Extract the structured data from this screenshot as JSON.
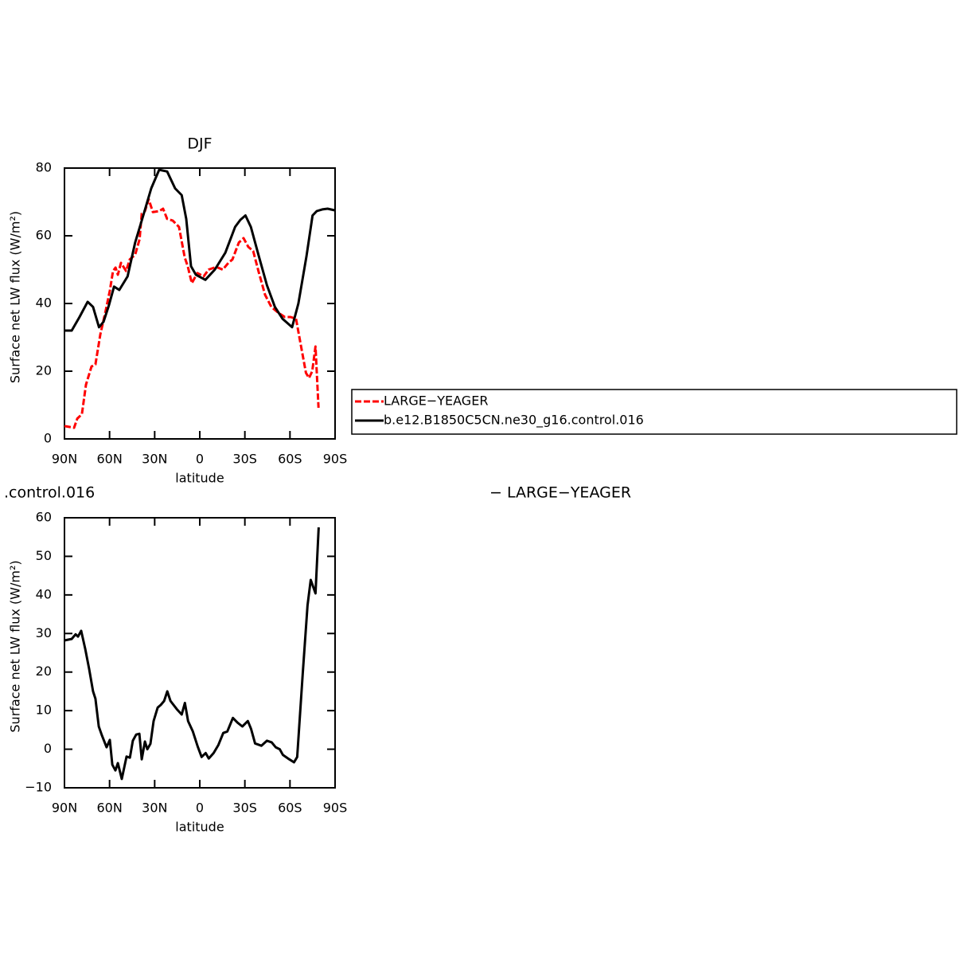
{
  "chart_data": [
    {
      "type": "line",
      "title": "DJF",
      "xlabel": "latitude",
      "ylabel": "Surface net LW flux (W/m²)",
      "xlim": [
        90,
        -90
      ],
      "xticks": [
        {
          "value": 90,
          "label": "90N"
        },
        {
          "value": 60,
          "label": "60N"
        },
        {
          "value": 30,
          "label": "30N"
        },
        0,
        {
          "value": -30,
          "label": "30S"
        },
        {
          "value": -60,
          "label": "60S"
        },
        {
          "value": -90,
          "label": "90S"
        }
      ],
      "ylim": [
        0,
        80
      ],
      "yticks": [
        0,
        20,
        40,
        60,
        80
      ],
      "series": [
        {
          "name": "LARGE−YEAGER",
          "color": "#ff0000",
          "line_style": "dashed",
          "x": [
            90,
            83.6,
            81.5,
            78.4,
            75.7,
            72,
            69.4,
            66.2,
            62.5,
            59.8,
            57.7,
            56,
            54.5,
            52.4,
            49,
            46.6,
            43,
            40,
            38.6,
            36.5,
            34,
            31.2,
            27,
            24.4,
            21.7,
            18,
            13.8,
            10,
            8,
            5.3,
            1.6,
            -2.6,
            -5.8,
            -11,
            -15.3,
            -19,
            -21.7,
            -26,
            -29.1,
            -32.3,
            -35.5,
            -39,
            -43.4,
            -47.6,
            -52.4,
            -56.6,
            -60.4,
            -64,
            -67.4,
            -70.6,
            -72.7,
            -74.8,
            -77,
            -79
          ],
          "values": [
            3.8,
            3.3,
            6,
            7.3,
            16,
            21.4,
            22,
            30.8,
            38,
            43.8,
            49.6,
            50.6,
            48.5,
            52,
            49.6,
            53,
            54.4,
            59,
            66.6,
            67.3,
            70.8,
            67,
            67.3,
            68,
            65,
            64.5,
            62.6,
            53.6,
            51,
            46,
            49,
            48,
            50,
            50.8,
            50,
            52,
            53,
            58,
            59.3,
            56.7,
            55.5,
            49.6,
            42.6,
            39,
            37.2,
            36,
            36,
            35.5,
            27.3,
            19.5,
            18,
            20,
            27.3,
            9.2
          ]
        },
        {
          "name": "b.e12.B1850C5CN.ne30_g16.control.016",
          "color": "#000000",
          "line_style": "solid",
          "x": [
            90,
            85.2,
            80,
            74.6,
            71,
            67,
            64,
            60.4,
            57,
            53.5,
            48,
            43,
            37.6,
            32.3,
            27,
            21.7,
            16.4,
            12,
            9,
            5.8,
            2.6,
            -3.7,
            -10,
            -17,
            -23.5,
            -27,
            -30.4,
            -34,
            -39,
            -44.7,
            -50,
            -55,
            -61.4,
            -65.6,
            -71,
            -75,
            -77.8,
            -81.5,
            -85,
            -90
          ],
          "values": [
            32,
            32,
            36,
            40.5,
            39,
            33,
            34.6,
            39.5,
            45,
            44,
            48,
            58,
            66,
            74,
            79.5,
            79,
            74,
            72,
            65,
            51,
            48.5,
            47,
            50,
            55,
            62.6,
            64.7,
            66,
            62.6,
            54.4,
            45.4,
            39,
            35.5,
            33,
            40,
            54,
            66,
            67.3,
            67.8,
            68,
            67.5
          ]
        }
      ]
    },
    {
      "type": "line",
      "title": ".control.016",
      "subtitle": "− LARGE−YEAGER",
      "xlabel": "latitude",
      "ylabel": "Surface net LW flux (W/m²)",
      "xlim": [
        90,
        -90
      ],
      "xticks": [
        {
          "value": 90,
          "label": "90N"
        },
        {
          "value": 60,
          "label": "60N"
        },
        {
          "value": 30,
          "label": "30N"
        },
        0,
        {
          "value": -30,
          "label": "30S"
        },
        {
          "value": -60,
          "label": "60S"
        },
        {
          "value": -90,
          "label": "90S"
        }
      ],
      "ylim": [
        -10,
        60
      ],
      "yticks": [
        {
          "value": -10,
          "label": "−10"
        },
        0,
        10,
        20,
        30,
        40,
        50,
        60
      ],
      "series": [
        {
          "color": "#000000",
          "line_style": "solid",
          "x": [
            90,
            85.2,
            82.6,
            81,
            78.9,
            76.2,
            73.6,
            71,
            69.4,
            67.2,
            65.1,
            62,
            59.8,
            58.2,
            56.1,
            54.5,
            51.9,
            48.7,
            46.5,
            44.5,
            42.3,
            40.2,
            38.6,
            36.5,
            34.9,
            32.8,
            30.7,
            28,
            25.9,
            23.7,
            21.6,
            19.5,
            15.3,
            12,
            9.9,
            7.8,
            4.6,
            1.4,
            -1.2,
            -3.9,
            -6,
            -9.2,
            -12.4,
            -15.6,
            -18.3,
            -22,
            -25.1,
            -28.3,
            -32,
            -34.1,
            -36.8,
            -41,
            -44.7,
            -47.8,
            -50.5,
            -53.2,
            -55.3,
            -59.5,
            -62.7,
            -64.8,
            -68.5,
            -71.7,
            -73.8,
            -77,
            -79.1
          ],
          "values": [
            28.2,
            28.6,
            29.8,
            29.2,
            30.7,
            26,
            20.8,
            15,
            13.1,
            5.9,
            3.6,
            0.5,
            2.4,
            -4,
            -5.5,
            -3.6,
            -7.7,
            -1.9,
            -2.2,
            2.2,
            3.8,
            4,
            -2.6,
            2,
            0,
            1.4,
            7.3,
            10.8,
            11.5,
            12.5,
            15,
            12.5,
            10.4,
            9,
            12,
            7.3,
            4.6,
            0.7,
            -2,
            -1,
            -2.4,
            -1,
            1.1,
            4.2,
            4.6,
            8.1,
            6.9,
            5.9,
            7.3,
            5.3,
            1.5,
            0.9,
            2.2,
            1.8,
            0.5,
            0,
            -1.5,
            -2.6,
            -3.4,
            -2,
            19.7,
            37.3,
            43.9,
            40.4,
            57.5
          ]
        }
      ]
    }
  ]
}
